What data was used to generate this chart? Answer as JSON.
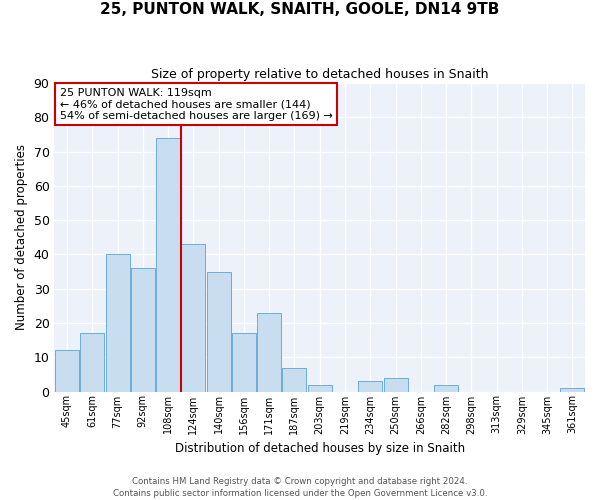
{
  "title": "25, PUNTON WALK, SNAITH, GOOLE, DN14 9TB",
  "subtitle": "Size of property relative to detached houses in Snaith",
  "xlabel": "Distribution of detached houses by size in Snaith",
  "ylabel": "Number of detached properties",
  "bar_color": "#c8ddf0",
  "bar_edge_color": "#6aaed6",
  "background_color": "#edf2fa",
  "grid_color": "#ffffff",
  "categories": [
    "45sqm",
    "61sqm",
    "77sqm",
    "92sqm",
    "108sqm",
    "124sqm",
    "140sqm",
    "156sqm",
    "171sqm",
    "187sqm",
    "203sqm",
    "219sqm",
    "234sqm",
    "250sqm",
    "266sqm",
    "282sqm",
    "298sqm",
    "313sqm",
    "329sqm",
    "345sqm",
    "361sqm"
  ],
  "values": [
    12,
    17,
    40,
    36,
    74,
    43,
    35,
    17,
    23,
    7,
    2,
    0,
    3,
    4,
    0,
    2,
    0,
    0,
    0,
    0,
    1
  ],
  "ylim": [
    0,
    90
  ],
  "yticks": [
    0,
    10,
    20,
    30,
    40,
    50,
    60,
    70,
    80,
    90
  ],
  "property_line_index": 4.5,
  "property_line_color": "#cc0000",
  "annotation_title": "25 PUNTON WALK: 119sqm",
  "annotation_line1": "← 46% of detached houses are smaller (144)",
  "annotation_line2": "54% of semi-detached houses are larger (169) →",
  "annotation_box_edge_color": "#cc0000",
  "footer1": "Contains HM Land Registry data © Crown copyright and database right 2024.",
  "footer2": "Contains public sector information licensed under the Open Government Licence v3.0."
}
